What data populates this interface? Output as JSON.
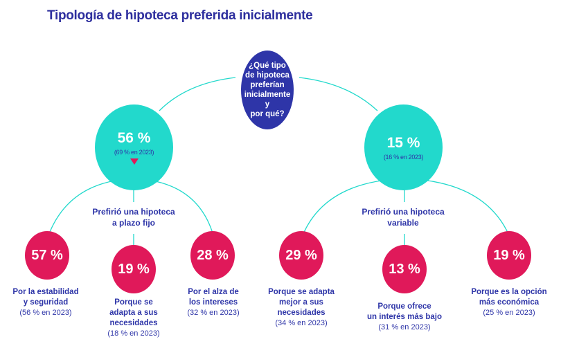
{
  "title": "Tipología de hipoteca preferida inicialmente",
  "colors": {
    "title": "#2e2f9e",
    "question": "#2e35a8",
    "teal": "#22d9cc",
    "pink": "#e0195a",
    "arrow_down": "#e0195a"
  },
  "question": {
    "lines": [
      "¿Qué tipo",
      "de hipoteca",
      "preferían",
      "inicialmente y",
      "por qué?"
    ]
  },
  "fixed": {
    "value": "56 %",
    "prev": "(69 % en 2023)",
    "trend_icon": "triangle-down",
    "label_lines": [
      "Prefirió una hipoteca",
      "a plazo fijo"
    ],
    "reasons": [
      {
        "value": "57 %",
        "lines": [
          "Por la estabilidad",
          "y seguridad"
        ],
        "prev": "(56 % en 2023)"
      },
      {
        "value": "19 %",
        "lines": [
          "Porque se",
          "adapta a sus",
          "necesidades"
        ],
        "prev": "(18 % en 2023)"
      },
      {
        "value": "28 %",
        "lines": [
          "Por el alza de",
          "los intereses"
        ],
        "prev": "(32 % en 2023)"
      }
    ]
  },
  "variable": {
    "value": "15 %",
    "prev": "(16 % en 2023)",
    "label_lines": [
      "Prefirió una hipoteca",
      "variable"
    ],
    "reasons": [
      {
        "value": "29 %",
        "lines": [
          "Porque se adapta",
          "mejor a sus",
          "necesidades"
        ],
        "prev": "(34 % en 2023)"
      },
      {
        "value": "13 %",
        "lines": [
          "Porque ofrece",
          "un interés más bajo"
        ],
        "prev": "(31 % en 2023)"
      },
      {
        "value": "19 %",
        "lines": [
          "Porque es la opción",
          "más económica"
        ],
        "prev": "(25 % en 2023)"
      }
    ]
  }
}
